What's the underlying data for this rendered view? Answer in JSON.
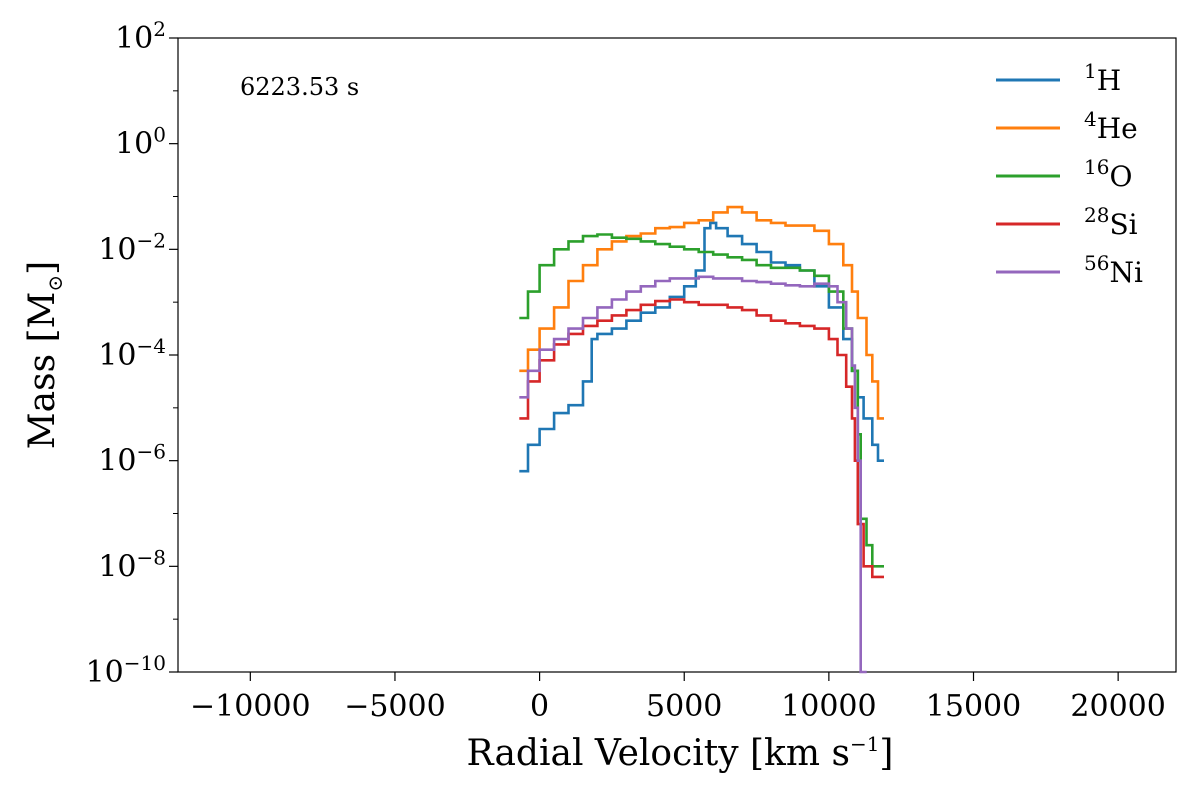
{
  "chart_data": {
    "type": "line",
    "step": true,
    "annotation": "6223.53 s",
    "xlabel": "Radial Velocity [km s",
    "xlabel_sup": "−1",
    "xlabel_end": "]",
    "ylabel": "Mass [M",
    "ylabel_sub": "⊙",
    "ylabel_end": "]",
    "xlim": [
      -12500,
      22000
    ],
    "ylim_log10": [
      -10,
      2
    ],
    "yscale": "log",
    "grid": false,
    "legend_position": "top-right",
    "x_ticks": [
      -10000,
      -5000,
      0,
      5000,
      10000,
      15000,
      20000
    ],
    "x_tick_labels": [
      "−10000",
      "−5000",
      "0",
      "5000",
      "10000",
      "15000",
      "20000"
    ],
    "y_ticks_log10": [
      2,
      0,
      -2,
      -4,
      -6,
      -8,
      -10
    ],
    "y_tick_base": "10",
    "y_tick_exponents": [
      "2",
      "0",
      "−2",
      "−4",
      "−6",
      "−8",
      "−10"
    ],
    "series": [
      {
        "name": "1H",
        "sup": "1",
        "element": "H",
        "color": "#1f77b4",
        "points_log10": [
          [
            -700,
            -6.2
          ],
          [
            -400,
            -5.7
          ],
          [
            0,
            -5.4
          ],
          [
            500,
            -5.1
          ],
          [
            1000,
            -4.95
          ],
          [
            1500,
            -4.5
          ],
          [
            1800,
            -3.7
          ],
          [
            2000,
            -3.6
          ],
          [
            2500,
            -3.5
          ],
          [
            3000,
            -3.35
          ],
          [
            3500,
            -3.2
          ],
          [
            4000,
            -3.1
          ],
          [
            4500,
            -2.9
          ],
          [
            5000,
            -2.7
          ],
          [
            5400,
            -2.4
          ],
          [
            5700,
            -1.6
          ],
          [
            5900,
            -1.5
          ],
          [
            6100,
            -1.6
          ],
          [
            6500,
            -1.75
          ],
          [
            7000,
            -1.9
          ],
          [
            7500,
            -2.05
          ],
          [
            8000,
            -2.25
          ],
          [
            8500,
            -2.3
          ],
          [
            8700,
            -2.3
          ],
          [
            9000,
            -2.4
          ],
          [
            9500,
            -2.7
          ],
          [
            10000,
            -3.1
          ],
          [
            10500,
            -3.7
          ],
          [
            10800,
            -4.3
          ],
          [
            11000,
            -4.8
          ],
          [
            11200,
            -5.2
          ],
          [
            11500,
            -5.7
          ],
          [
            11700,
            -6.0
          ]
        ]
      },
      {
        "name": "4He",
        "sup": "4",
        "element": "He",
        "color": "#ff7f0e",
        "points_log10": [
          [
            -700,
            -4.3
          ],
          [
            -400,
            -3.9
          ],
          [
            0,
            -3.5
          ],
          [
            500,
            -3.1
          ],
          [
            1000,
            -2.6
          ],
          [
            1500,
            -2.3
          ],
          [
            2000,
            -2.0
          ],
          [
            2500,
            -1.85
          ],
          [
            3000,
            -1.75
          ],
          [
            3500,
            -1.7
          ],
          [
            4000,
            -1.6
          ],
          [
            4500,
            -1.58
          ],
          [
            5000,
            -1.5
          ],
          [
            5500,
            -1.45
          ],
          [
            6000,
            -1.3
          ],
          [
            6500,
            -1.2
          ],
          [
            7000,
            -1.3
          ],
          [
            7500,
            -1.45
          ],
          [
            8000,
            -1.5
          ],
          [
            8500,
            -1.55
          ],
          [
            9000,
            -1.55
          ],
          [
            9500,
            -1.65
          ],
          [
            10000,
            -1.9
          ],
          [
            10500,
            -2.3
          ],
          [
            10800,
            -2.8
          ],
          [
            11000,
            -3.3
          ],
          [
            11300,
            -4.0
          ],
          [
            11500,
            -4.5
          ],
          [
            11700,
            -5.2
          ]
        ]
      },
      {
        "name": "16O",
        "sup": "16",
        "element": "O",
        "color": "#2ca02c",
        "points_log10": [
          [
            -700,
            -3.3
          ],
          [
            -400,
            -2.8
          ],
          [
            0,
            -2.3
          ],
          [
            500,
            -2.0
          ],
          [
            1000,
            -1.85
          ],
          [
            1500,
            -1.75
          ],
          [
            2000,
            -1.72
          ],
          [
            2500,
            -1.78
          ],
          [
            3000,
            -1.8
          ],
          [
            3500,
            -1.85
          ],
          [
            4000,
            -1.9
          ],
          [
            4500,
            -1.95
          ],
          [
            5000,
            -2.0
          ],
          [
            5500,
            -2.05
          ],
          [
            6000,
            -2.1
          ],
          [
            6500,
            -2.15
          ],
          [
            7000,
            -2.2
          ],
          [
            7500,
            -2.3
          ],
          [
            8000,
            -2.35
          ],
          [
            8500,
            -2.35
          ],
          [
            9000,
            -2.4
          ],
          [
            9500,
            -2.5
          ],
          [
            10000,
            -2.8
          ],
          [
            10500,
            -3.5
          ],
          [
            10800,
            -4.3
          ],
          [
            11000,
            -5.5
          ],
          [
            11100,
            -7.1
          ],
          [
            11300,
            -7.6
          ],
          [
            11500,
            -8.0
          ],
          [
            11700,
            -8.0
          ]
        ]
      },
      {
        "name": "28Si",
        "sup": "28",
        "element": "Si",
        "color": "#d62728",
        "points_log10": [
          [
            -700,
            -5.2
          ],
          [
            -400,
            -4.5
          ],
          [
            0,
            -4.1
          ],
          [
            500,
            -3.8
          ],
          [
            1000,
            -3.6
          ],
          [
            1500,
            -3.45
          ],
          [
            2000,
            -3.35
          ],
          [
            2500,
            -3.25
          ],
          [
            3000,
            -3.15
          ],
          [
            3500,
            -3.05
          ],
          [
            4000,
            -2.98
          ],
          [
            4500,
            -2.95
          ],
          [
            5000,
            -3.0
          ],
          [
            5500,
            -3.05
          ],
          [
            6000,
            -3.05
          ],
          [
            6500,
            -3.1
          ],
          [
            7000,
            -3.15
          ],
          [
            7500,
            -3.25
          ],
          [
            8000,
            -3.35
          ],
          [
            8500,
            -3.4
          ],
          [
            9000,
            -3.45
          ],
          [
            9500,
            -3.5
          ],
          [
            10000,
            -3.7
          ],
          [
            10300,
            -4.0
          ],
          [
            10600,
            -4.6
          ],
          [
            10800,
            -5.2
          ],
          [
            10900,
            -6.0
          ],
          [
            11000,
            -7.2
          ],
          [
            11200,
            -8.0
          ],
          [
            11500,
            -8.2
          ],
          [
            11700,
            -8.2
          ]
        ]
      },
      {
        "name": "56Ni",
        "sup": "56",
        "element": "Ni",
        "color": "#9467bd",
        "points_log10": [
          [
            -700,
            -4.8
          ],
          [
            -400,
            -4.3
          ],
          [
            0,
            -3.9
          ],
          [
            500,
            -3.7
          ],
          [
            1000,
            -3.5
          ],
          [
            1500,
            -3.3
          ],
          [
            2000,
            -3.1
          ],
          [
            2500,
            -2.95
          ],
          [
            3000,
            -2.8
          ],
          [
            3500,
            -2.7
          ],
          [
            4000,
            -2.6
          ],
          [
            4500,
            -2.55
          ],
          [
            5000,
            -2.55
          ],
          [
            5500,
            -2.52
          ],
          [
            6000,
            -2.55
          ],
          [
            6500,
            -2.55
          ],
          [
            7000,
            -2.6
          ],
          [
            7500,
            -2.62
          ],
          [
            8000,
            -2.65
          ],
          [
            8500,
            -2.68
          ],
          [
            9000,
            -2.7
          ],
          [
            9500,
            -2.65
          ],
          [
            10000,
            -2.7
          ],
          [
            10300,
            -3.0
          ],
          [
            10600,
            -3.5
          ],
          [
            10800,
            -4.2
          ],
          [
            10900,
            -5.0
          ],
          [
            11000,
            -6.0
          ],
          [
            11100,
            -10.0
          ]
        ]
      }
    ]
  }
}
